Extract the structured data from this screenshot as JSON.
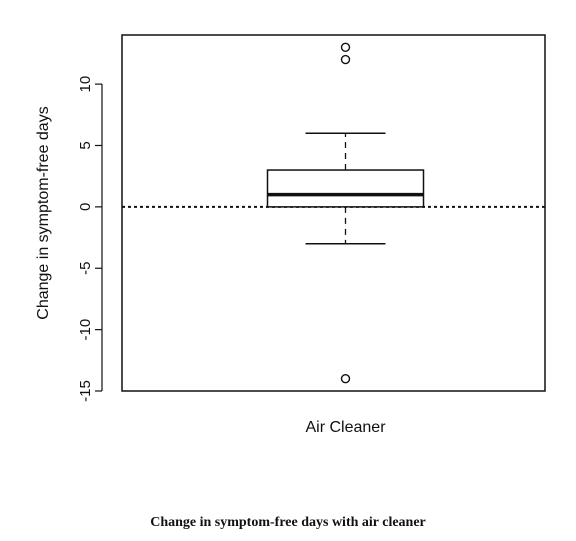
{
  "caption": "Change in symptom-free days with air cleaner",
  "chart_data": {
    "type": "boxplot",
    "ylabel": "Change in symptom-free days",
    "ylim": [
      -15,
      14
    ],
    "yticks": [
      -15,
      -10,
      -5,
      0,
      5,
      10
    ],
    "categories": [
      "Air Cleaner"
    ],
    "boxes": [
      {
        "category": "Air Cleaner",
        "whisker_low": -3,
        "q1": 0,
        "median": 1,
        "q3": 3,
        "whisker_high": 6,
        "outliers": [
          13,
          12,
          -14
        ]
      }
    ],
    "reference_line": {
      "y": 0,
      "style": "dotted"
    },
    "grid": false,
    "frame": true
  }
}
